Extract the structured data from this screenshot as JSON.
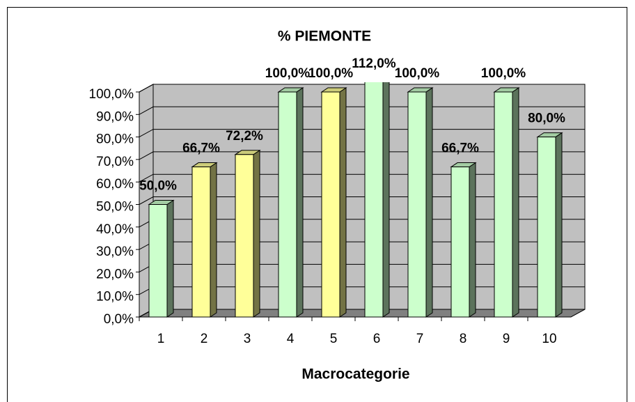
{
  "chart_data": {
    "type": "bar3d",
    "title": "% PIEMONTE",
    "x_label": "Macrocategorie",
    "categories": [
      "1",
      "2",
      "3",
      "4",
      "5",
      "6",
      "7",
      "8",
      "9",
      "10"
    ],
    "values": [
      50,
      66.7,
      72.2,
      100,
      100,
      112,
      100,
      66.7,
      100,
      80
    ],
    "value_labels": [
      "50,0%",
      "66,7%",
      "72,2%",
      "100,0%",
      "100,0%",
      "112,0%",
      "100,0%",
      "66,7%",
      "100,0%",
      "80,0%"
    ],
    "colors": [
      "#ccffcc",
      "#ffff99",
      "#ffff99",
      "#ccffcc",
      "#ffff99",
      "#ccffcc",
      "#ccffcc",
      "#ccffcc",
      "#ccffcc",
      "#ccffcc"
    ],
    "ylim": [
      0,
      100
    ],
    "yticks": [
      {
        "value": 0,
        "label": "0,0%"
      },
      {
        "value": 10,
        "label": "10,0%"
      },
      {
        "value": 20,
        "label": "20,0%"
      },
      {
        "value": 30,
        "label": "30,0%"
      },
      {
        "value": 40,
        "label": "40,0%"
      },
      {
        "value": 50,
        "label": "50,0%"
      },
      {
        "value": 60,
        "label": "60,0%"
      },
      {
        "value": 70,
        "label": "70,0%"
      },
      {
        "value": 80,
        "label": "80,0%"
      },
      {
        "value": 90,
        "label": "90,0%"
      },
      {
        "value": 100,
        "label": "100,0%"
      }
    ],
    "grid": true
  }
}
